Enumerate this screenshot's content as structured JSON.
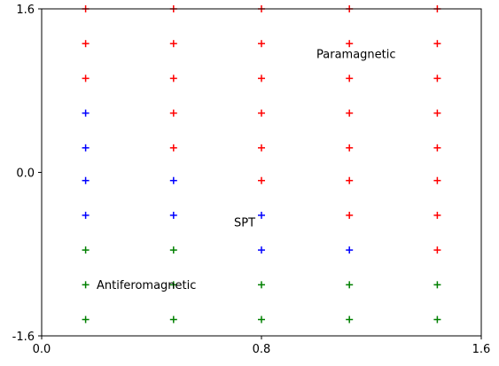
{
  "chart_data": {
    "type": "scatter",
    "marker": "plus",
    "title": "",
    "xlabel": "",
    "ylabel": "",
    "xlim": [
      0.0,
      1.6
    ],
    "ylim": [
      -1.6,
      1.6
    ],
    "xticks": [
      0.0,
      0.8,
      1.6
    ],
    "xtick_labels": [
      "0.0",
      "0.8",
      "1.6"
    ],
    "yticks": [
      -1.6,
      0.0,
      1.6
    ],
    "ytick_labels": [
      "-1.6",
      "0.0",
      "1.6"
    ],
    "grid": false,
    "series": [
      {
        "color": "#ff0000",
        "x": [
          0.16,
          0.48,
          0.8,
          1.12,
          1.44,
          0.16,
          0.48,
          0.8,
          1.12,
          1.44,
          0.16,
          0.48,
          0.8,
          1.12,
          1.44,
          0.48,
          0.8,
          1.12,
          1.44,
          0.48,
          0.8,
          1.12,
          1.44,
          0.8,
          1.12,
          1.44,
          1.12,
          1.44,
          1.44
        ],
        "y": [
          1.6,
          1.6,
          1.6,
          1.6,
          1.6,
          1.26,
          1.26,
          1.26,
          1.26,
          1.26,
          0.92,
          0.92,
          0.92,
          0.92,
          0.92,
          0.58,
          0.58,
          0.58,
          0.58,
          0.24,
          0.24,
          0.24,
          0.24,
          -0.08,
          -0.08,
          -0.08,
          -0.42,
          -0.42,
          -0.76
        ]
      },
      {
        "color": "#0000ff",
        "x": [
          0.16,
          0.16,
          0.16,
          0.48,
          0.16,
          0.48,
          0.8,
          0.8,
          1.12
        ],
        "y": [
          0.58,
          0.24,
          -0.08,
          -0.08,
          -0.42,
          -0.42,
          -0.42,
          -0.76,
          -0.76
        ]
      },
      {
        "color": "#008000",
        "x": [
          0.16,
          0.48,
          0.16,
          0.48,
          0.8,
          1.12,
          1.44,
          0.16,
          0.48,
          0.8,
          1.12,
          1.44
        ],
        "y": [
          -0.76,
          -0.76,
          -1.1,
          -1.1,
          -1.1,
          -1.1,
          -1.1,
          -1.44,
          -1.44,
          -1.44,
          -1.44,
          -1.44
        ]
      }
    ],
    "annotations": [
      {
        "text": "Paramagnetic",
        "x": 1.0,
        "y": 1.12
      },
      {
        "text": "SPT",
        "x": 0.7,
        "y": -0.53
      },
      {
        "text": "Antiferomagnetic",
        "x": 0.2,
        "y": -1.14
      }
    ]
  }
}
